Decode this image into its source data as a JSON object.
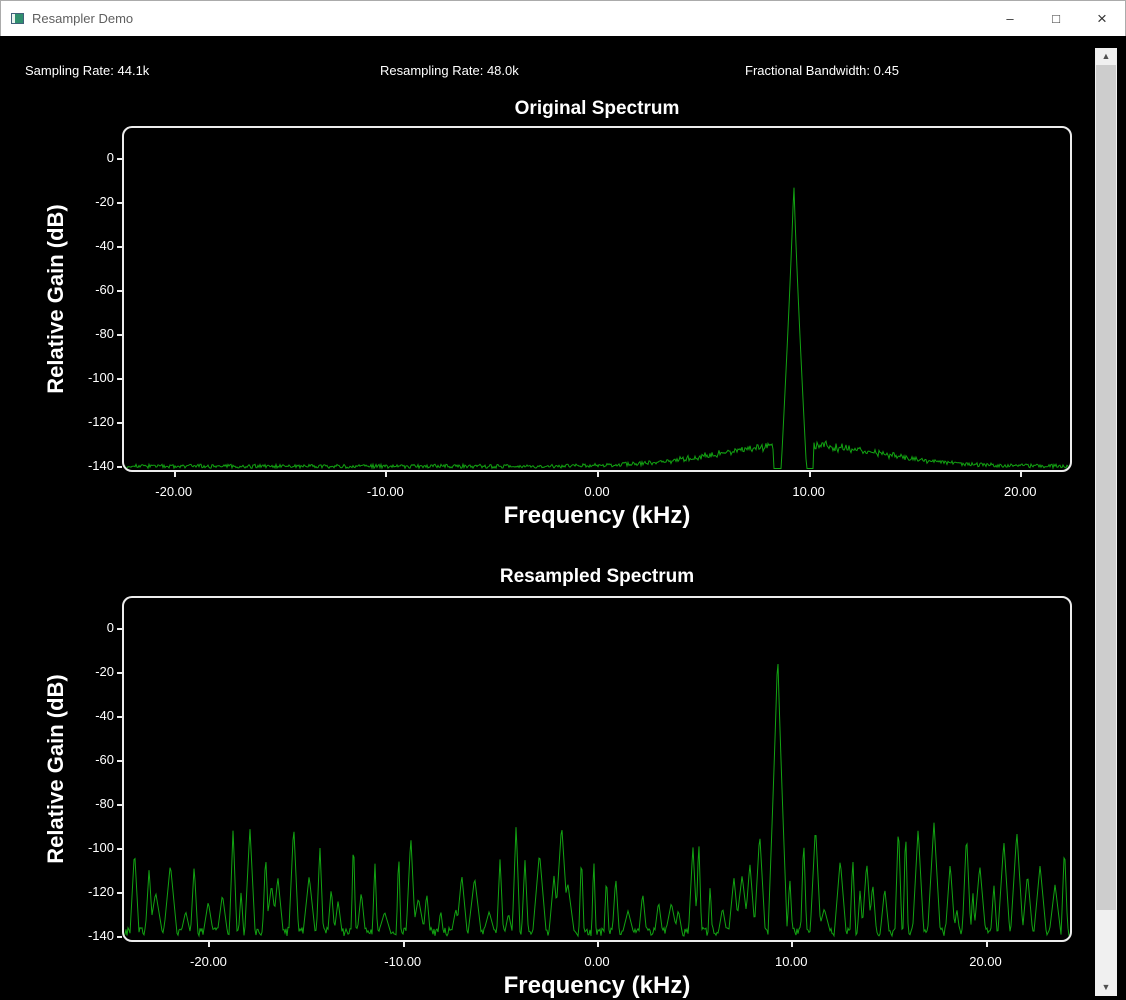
{
  "window": {
    "title": "Resampler Demo",
    "controls": {
      "minimize": "–",
      "maximize": "□",
      "close": "×"
    }
  },
  "params": {
    "sampling_rate": "Sampling Rate: 44.1k",
    "resampling_rate": "Resampling Rate: 48.0k",
    "fractional_bandwidth": "Fractional Bandwidth: 0.45"
  },
  "chart_data": [
    {
      "type": "line",
      "title": "Original Spectrum",
      "xlabel": "Frequency (kHz)",
      "ylabel": "Relative Gain (dB)",
      "xlim": [
        -22.35,
        22.35
      ],
      "ylim": [
        -141.8,
        13.5
      ],
      "xticks": [
        -20,
        -10,
        0,
        10,
        20
      ],
      "xtick_labels": [
        "-20.00",
        "-10.00",
        "0.00",
        "10.00",
        "20.00"
      ],
      "yticks": [
        0,
        -20,
        -40,
        -60,
        -80,
        -100,
        -120,
        -140
      ],
      "ytick_labels": [
        "0",
        "-20",
        "-40",
        "-60",
        "-80",
        "-100",
        "-120",
        "-140"
      ],
      "grid": false,
      "legend": "none",
      "line_color": "#12a312",
      "series": [
        {
          "name": "original-spectrum",
          "kind": "synthesized-noise-spectrum",
          "tone_freq_khz": 9.3,
          "tone_peak_db": -10,
          "noise_floor_db": -141,
          "noise_fuzz_db": 1.8,
          "skirt_hump_center_khz": 9.6,
          "skirt_hump_halfwidth_khz": 5.5,
          "skirt_hump_top_db": -131,
          "notch_inner_khz": 0.62,
          "notch_outer_khz": 0.95,
          "seed": 99
        }
      ]
    },
    {
      "type": "line",
      "title": "Resampled Spectrum",
      "xlabel": "Frequency (kHz)",
      "ylabel": "Relative Gain (dB)",
      "xlim": [
        -24.35,
        24.35
      ],
      "ylim": [
        -141.8,
        13.5
      ],
      "xticks": [
        -20,
        -10,
        0,
        10,
        20
      ],
      "xtick_labels": [
        "-20.00",
        "-10.00",
        "0.00",
        "10.00",
        "20.00"
      ],
      "yticks": [
        0,
        -20,
        -40,
        -60,
        -80,
        -100,
        -120,
        -140
      ],
      "ytick_labels": [
        "0",
        "-20",
        "-40",
        "-60",
        "-80",
        "-100",
        "-120",
        "-140"
      ],
      "grid": false,
      "legend": "none",
      "line_color": "#12a312",
      "series": [
        {
          "name": "resampled-spectrum",
          "kind": "synthesized-spiky-spectrum",
          "tone_freq_khz": 9.3,
          "tone_peak_db": -10,
          "tone_base_halfwidth_khz": 0.5,
          "noise_floor_db": -140,
          "noise_fuzz_db": 4,
          "spike_peak_max_db": -88,
          "spike_peak_min_db": -130,
          "spike_min_spacing_khz": 0.3,
          "spike_max_spacing_khz": 0.85,
          "spike_min_halfwidth_khz": 0.12,
          "spike_max_halfwidth_khz": 0.37,
          "seed": 12345
        }
      ]
    }
  ],
  "scrollbar": {
    "up_arrow": "▲",
    "down_arrow": "▼"
  }
}
